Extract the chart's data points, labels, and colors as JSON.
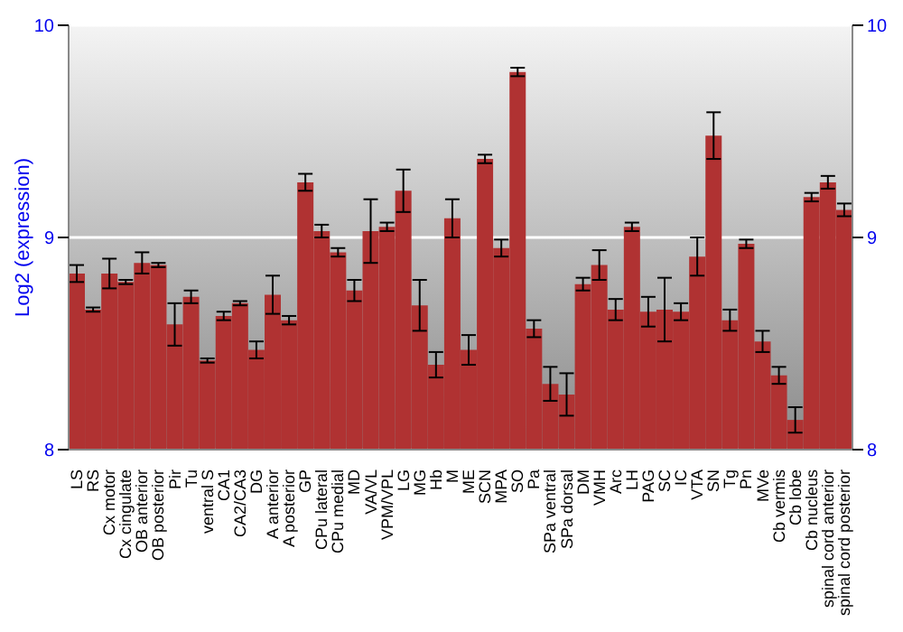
{
  "chart_data": {
    "type": "bar",
    "ylabel": "Log2 (expression)",
    "categories": [
      "LS",
      "RS",
      "Cx motor",
      "Cx cingulate",
      "OB anterior",
      "OB posterior",
      "Pir",
      "Tu",
      "ventral S",
      "CA1",
      "CA2/CA3",
      "DG",
      "A anterior",
      "A posterior",
      "GP",
      "CPu lateral",
      "CPu medial",
      "MD",
      "VA/VL",
      "VPM/VPL",
      "LG",
      "MG",
      "Hb",
      "M",
      "ME",
      "SCN",
      "MPA",
      "SO",
      "Pa",
      "SPa ventral",
      "SPa dorsal",
      "DM",
      "VMH",
      "Arc",
      "LH",
      "PAG",
      "SC",
      "IC",
      "VTA",
      "SN",
      "Tg",
      "Pn",
      "MVe",
      "Cb vermis",
      "Cb lobe",
      "Cb nucleus",
      "spinal cord anterior",
      "spinal cord posterior"
    ],
    "values": [
      8.83,
      8.66,
      8.83,
      8.79,
      8.88,
      8.87,
      8.59,
      8.72,
      8.42,
      8.63,
      8.69,
      8.47,
      8.73,
      8.61,
      9.26,
      9.03,
      8.93,
      8.75,
      9.03,
      9.05,
      9.22,
      8.68,
      8.4,
      9.09,
      8.47,
      9.37,
      8.95,
      9.78,
      8.57,
      8.31,
      8.26,
      8.78,
      8.87,
      8.66,
      9.05,
      8.65,
      8.66,
      8.65,
      8.91,
      9.48,
      8.61,
      8.97,
      8.51,
      8.35,
      8.14,
      9.19,
      9.26,
      9.13
    ],
    "errors": [
      0.04,
      0.01,
      0.07,
      0.01,
      0.05,
      0.01,
      0.1,
      0.03,
      0.01,
      0.02,
      0.01,
      0.04,
      0.09,
      0.02,
      0.04,
      0.03,
      0.02,
      0.05,
      0.15,
      0.02,
      0.1,
      0.12,
      0.06,
      0.09,
      0.07,
      0.02,
      0.04,
      0.02,
      0.04,
      0.08,
      0.1,
      0.03,
      0.07,
      0.05,
      0.02,
      0.07,
      0.15,
      0.04,
      0.09,
      0.11,
      0.05,
      0.02,
      0.05,
      0.04,
      0.06,
      0.02,
      0.03,
      0.03
    ],
    "color": "#b03232",
    "ylim": [
      8,
      10
    ],
    "yticks": [
      8,
      9,
      10
    ],
    "y2lim": [
      8,
      10
    ],
    "y2ticks": [
      8,
      9,
      10
    ],
    "grid": "y"
  }
}
